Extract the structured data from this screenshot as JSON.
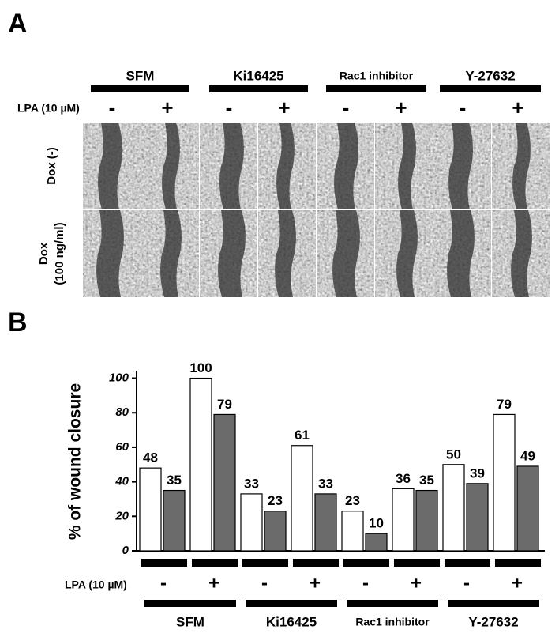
{
  "panel_a": {
    "label": "A",
    "groups": [
      "SFM",
      "Ki16425",
      "Rac1 inhibitor",
      "Y-27632"
    ],
    "lpa_label": "LPA (10 µM)",
    "lpa_signs": [
      "-",
      "+",
      "-",
      "+",
      "-",
      "+",
      "-",
      "+"
    ],
    "rows": [
      {
        "lines": [
          "Dox (-)"
        ]
      },
      {
        "lines": [
          "Dox",
          "(100 ng/ml)"
        ]
      }
    ]
  },
  "panel_b_label": "B",
  "chart_data": {
    "type": "bar",
    "ylabel": "% of wound closure",
    "categories": [
      "-",
      "+",
      "-",
      "+",
      "-",
      "+",
      "-",
      "+"
    ],
    "x_row_label": "LPA (10 µM)",
    "groups": [
      "SFM",
      "Ki16425",
      "Rac1 inhibitor",
      "Y-27632"
    ],
    "series": [
      {
        "color": "#ffffff",
        "values": [
          48,
          100,
          33,
          61,
          23,
          36,
          50,
          79
        ]
      },
      {
        "color": "#6b6b6b",
        "values": [
          35,
          79,
          23,
          33,
          10,
          35,
          39,
          49
        ]
      }
    ],
    "ylim": [
      0,
      103
    ],
    "yticks": [
      0,
      20,
      40,
      60,
      80,
      100
    ]
  }
}
